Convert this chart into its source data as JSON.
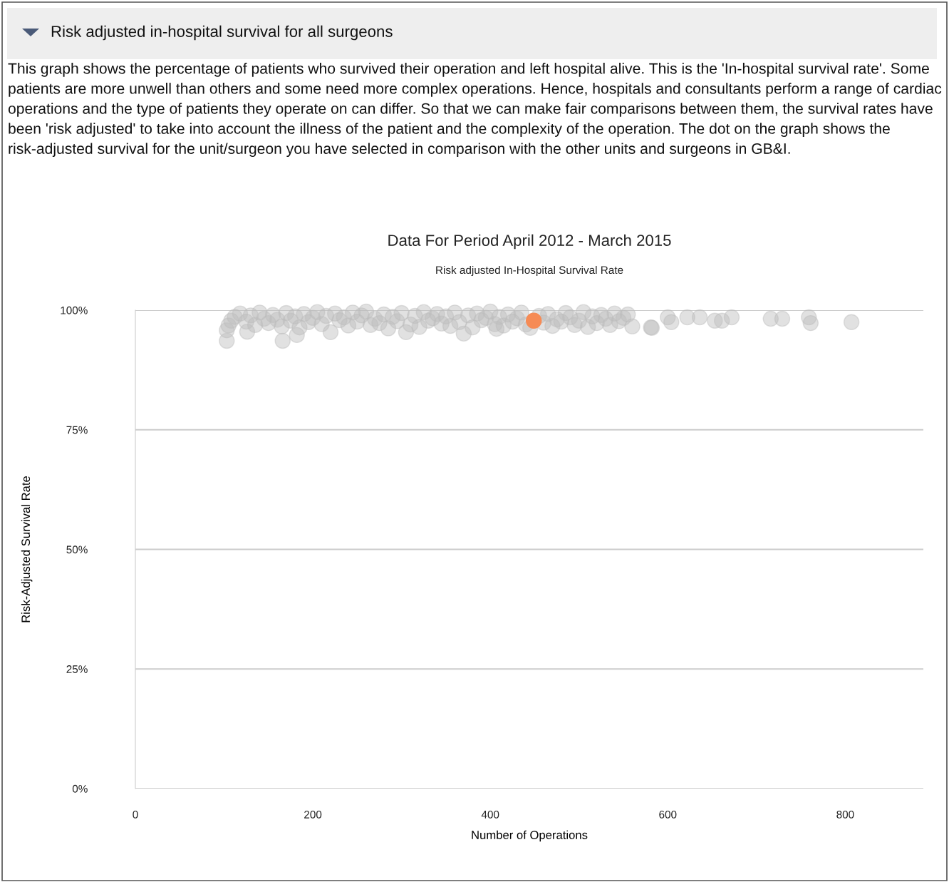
{
  "chart_data": {
    "type": "scatter",
    "title": "Data For Period April 2012 - March 2015",
    "subtitle": "Risk adjusted In-Hospital Survival Rate",
    "xlabel": "Number of Operations",
    "ylabel": "Risk-Adjusted Survival Rate",
    "annotations": [
      "Risk adjusted in-hospital survival for all surgeons",
      "This graph shows the percentage of patients who survived their operation and left hospital alive. This is the 'In-hospital survival rate'. Some patients are more unwell than others and some need more complex operations. Hence, hospitals and consultants perform a range of cardiac operations and the type of patients they operate on can differ. So that we can make fair comparisons between them, the survival rates have been 'risk adjusted' to take into account the illness of the patient and the complexity of the operation. The dot on the graph shows the risk-adjusted survival for the unit/surgeon you have selected in comparison with the other units and surgeons in GB&I."
    ],
    "xlim": [
      0,
      888
    ],
    "xticks": [
      0,
      200,
      400,
      600,
      800
    ],
    "ylim": [
      0,
      100
    ],
    "yticks": [
      {
        "value": 0,
        "label": "0%"
      },
      {
        "value": 25,
        "label": "25%"
      },
      {
        "value": 50,
        "label": "50%"
      },
      {
        "value": 75,
        "label": "75%"
      },
      {
        "value": 100,
        "label": "100%"
      }
    ],
    "grid": "y",
    "marker": "circle",
    "series": [
      {
        "color": "#bdbdbd",
        "x": [
          103,
          103,
          166,
          126,
          182,
          220,
          305,
          370,
          407,
          560,
          581,
          582,
          600,
          604,
          622,
          636,
          653,
          661,
          672,
          716,
          729,
          759,
          761,
          807,
          105,
          108,
          112,
          118,
          125,
          130,
          135,
          140,
          145,
          150,
          155,
          160,
          165,
          170,
          175,
          180,
          185,
          190,
          195,
          200,
          205,
          210,
          215,
          225,
          230,
          235,
          240,
          245,
          250,
          255,
          260,
          265,
          270,
          275,
          280,
          285,
          290,
          295,
          300,
          310,
          315,
          320,
          325,
          330,
          335,
          340,
          345,
          350,
          355,
          360,
          365,
          375,
          380,
          385,
          390,
          395,
          400,
          405,
          410,
          415,
          420,
          425,
          430,
          435,
          440,
          445,
          455,
          460,
          465,
          470,
          475,
          480,
          485,
          490,
          495,
          500,
          505,
          510,
          515,
          520,
          525,
          530,
          535,
          540,
          545,
          550,
          555
        ],
        "values": [
          93.6,
          95.8,
          93.6,
          95.5,
          94.8,
          95.4,
          95.4,
          95.1,
          96.1,
          96.6,
          96.4,
          96.3,
          98.5,
          97.5,
          98.5,
          98.5,
          97.8,
          97.8,
          98.5,
          98.2,
          98.2,
          98.5,
          97.3,
          97.5,
          96.8,
          97.8,
          98.6,
          99.3,
          97.6,
          98.9,
          96.9,
          99.5,
          98.2,
          97.3,
          99.0,
          98.0,
          96.6,
          99.4,
          97.8,
          98.7,
          96.4,
          99.2,
          97.5,
          98.4,
          99.6,
          97.1,
          98.8,
          99.3,
          97.9,
          98.5,
          96.8,
          99.5,
          97.6,
          98.9,
          99.7,
          96.9,
          98.2,
          97.3,
          99.1,
          96.2,
          98.6,
          97.7,
          99.4,
          97.0,
          98.8,
          96.5,
          99.6,
          97.8,
          98.3,
          99.2,
          97.2,
          98.7,
          96.7,
          99.5,
          97.5,
          98.9,
          96.4,
          99.3,
          97.9,
          98.4,
          99.7,
          97.1,
          98.6,
          96.8,
          99.1,
          97.6,
          98.3,
          99.5,
          97.0,
          96.3,
          98.8,
          97.4,
          99.2,
          96.7,
          98.1,
          97.6,
          99.4,
          98.5,
          96.9,
          97.8,
          99.6,
          96.5,
          98.7,
          97.3,
          99.0,
          98.2,
          96.9,
          99.3,
          97.7,
          98.4,
          99.1
        ]
      },
      {
        "color": "#f68b55",
        "x": [
          449
        ],
        "values": [
          97.8
        ]
      }
    ]
  }
}
